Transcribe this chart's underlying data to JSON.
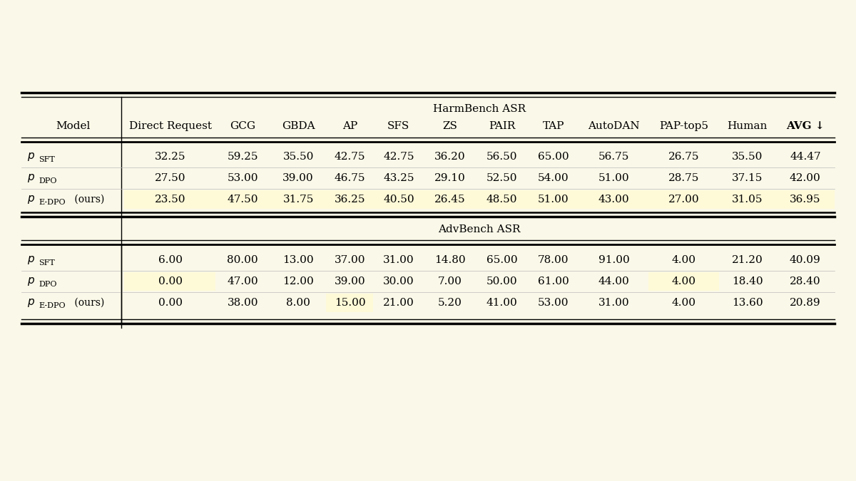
{
  "background_color": "#faf8e8",
  "highlight_yellow": "#fef9d7",
  "header1": "HarmBench ASR",
  "header2": "AdvBench ASR",
  "col_headers": [
    "Model",
    "Direct Request",
    "GCG",
    "GBDA",
    "AP",
    "SFS",
    "ZS",
    "PAIR",
    "TAP",
    "AutoDAN",
    "PAP-top5",
    "Human",
    "AVG ↓"
  ],
  "harmbench_rows": [
    [
      "p_SFT",
      "32.25",
      "59.25",
      "35.50",
      "42.75",
      "42.75",
      "36.20",
      "56.50",
      "65.00",
      "56.75",
      "26.75",
      "35.50",
      "44.47"
    ],
    [
      "p_DPO",
      "27.50",
      "53.00",
      "39.00",
      "46.75",
      "43.25",
      "29.10",
      "52.50",
      "54.00",
      "51.00",
      "28.75",
      "37.15",
      "42.00"
    ],
    [
      "p_E-DPO (ours)",
      "23.50",
      "47.50",
      "31.75",
      "36.25",
      "40.50",
      "26.45",
      "48.50",
      "51.00",
      "43.00",
      "27.00",
      "31.05",
      "36.95"
    ]
  ],
  "advbench_rows": [
    [
      "p_SFT",
      "6.00",
      "80.00",
      "13.00",
      "37.00",
      "31.00",
      "14.80",
      "65.00",
      "78.00",
      "91.00",
      "4.00",
      "21.20",
      "40.09"
    ],
    [
      "p_DPO",
      "0.00",
      "47.00",
      "12.00",
      "39.00",
      "30.00",
      "7.00",
      "50.00",
      "61.00",
      "44.00",
      "4.00",
      "18.40",
      "28.40"
    ],
    [
      "p_E-DPO (ours)",
      "0.00",
      "38.00",
      "8.00",
      "15.00",
      "21.00",
      "5.20",
      "41.00",
      "53.00",
      "31.00",
      "4.00",
      "13.60",
      "20.89"
    ]
  ],
  "harmbench_highlight": [
    [
      false,
      false,
      false,
      false,
      false,
      false,
      false,
      false,
      false,
      false,
      false,
      false,
      false
    ],
    [
      false,
      false,
      false,
      false,
      false,
      false,
      false,
      false,
      false,
      false,
      false,
      false,
      false
    ],
    [
      false,
      true,
      true,
      true,
      true,
      true,
      true,
      true,
      true,
      true,
      true,
      true,
      true
    ]
  ],
  "advbench_highlight": [
    [
      false,
      false,
      false,
      false,
      false,
      false,
      false,
      false,
      false,
      false,
      false,
      false,
      false
    ],
    [
      false,
      true,
      false,
      false,
      false,
      false,
      false,
      false,
      false,
      false,
      true,
      false,
      false
    ],
    [
      false,
      false,
      false,
      false,
      true,
      false,
      false,
      false,
      false,
      false,
      false,
      false,
      false
    ]
  ],
  "fig_width": 12.0,
  "fig_height": 6.75,
  "dpi": 100
}
